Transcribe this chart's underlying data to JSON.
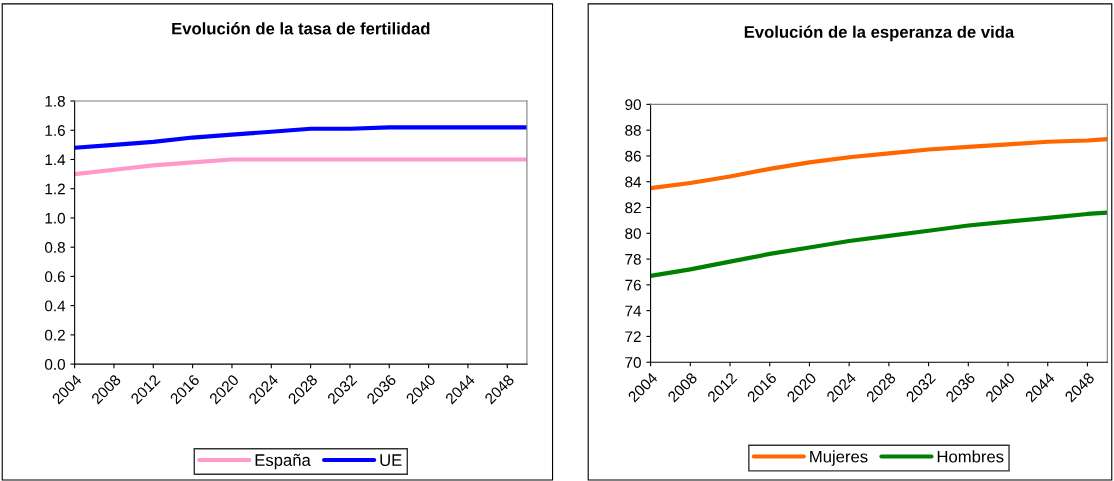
{
  "chart_data": [
    {
      "type": "line",
      "title": "Evolución de la tasa de fertilidad",
      "x": [
        2004,
        2008,
        2012,
        2016,
        2020,
        2024,
        2028,
        2032,
        2036,
        2040,
        2044,
        2048,
        2050
      ],
      "xlim": [
        2004,
        2050
      ],
      "xticks": [
        2004,
        2008,
        2012,
        2016,
        2020,
        2024,
        2028,
        2032,
        2036,
        2040,
        2044,
        2048
      ],
      "ylim": [
        0,
        1.8
      ],
      "yticks": [
        {
          "value": 0,
          "label": "0.0"
        },
        {
          "value": 0.2,
          "label": "0.2"
        },
        {
          "value": 0.4,
          "label": "0.4"
        },
        {
          "value": 0.6,
          "label": "0.6"
        },
        {
          "value": 0.8,
          "label": "0.8"
        },
        {
          "value": 1.0,
          "label": "1.0"
        },
        {
          "value": 1.2,
          "label": "1.2"
        },
        {
          "value": 1.4,
          "label": "1.4"
        },
        {
          "value": 1.6,
          "label": "1.6"
        },
        {
          "value": 1.8,
          "label": "1.8"
        }
      ],
      "grid": false,
      "legend": "bottom",
      "marker": "none",
      "line_style": "solid",
      "series": [
        {
          "name": "España",
          "color": "#ff99cc",
          "values": [
            1.3,
            1.33,
            1.36,
            1.38,
            1.4,
            1.4,
            1.4,
            1.4,
            1.4,
            1.4,
            1.4,
            1.4,
            1.4
          ]
        },
        {
          "name": "UE",
          "color": "#0000ff",
          "values": [
            1.48,
            1.5,
            1.52,
            1.55,
            1.57,
            1.59,
            1.61,
            1.61,
            1.62,
            1.62,
            1.62,
            1.62,
            1.62
          ]
        }
      ]
    },
    {
      "type": "line",
      "title": "Evolución de la esperanza de vida",
      "x": [
        2004,
        2008,
        2012,
        2016,
        2020,
        2024,
        2028,
        2032,
        2036,
        2040,
        2044,
        2048,
        2050
      ],
      "xlim": [
        2004,
        2050
      ],
      "xticks": [
        2004,
        2008,
        2012,
        2016,
        2020,
        2024,
        2028,
        2032,
        2036,
        2040,
        2044,
        2048
      ],
      "ylim": [
        70,
        90
      ],
      "yticks": [
        70,
        72,
        74,
        76,
        78,
        80,
        82,
        84,
        86,
        88,
        90
      ],
      "grid": false,
      "legend": "bottom",
      "marker": "none",
      "line_style": "solid",
      "series": [
        {
          "name": "Mujeres",
          "color": "#ff6600",
          "values": [
            83.5,
            83.9,
            84.4,
            85.0,
            85.5,
            85.9,
            86.2,
            86.5,
            86.7,
            86.9,
            87.1,
            87.2,
            87.3
          ]
        },
        {
          "name": "Hombres",
          "color": "#008000",
          "values": [
            76.7,
            77.2,
            77.8,
            78.4,
            78.9,
            79.4,
            79.8,
            80.2,
            80.6,
            80.9,
            81.2,
            81.5,
            81.6
          ]
        }
      ]
    }
  ]
}
